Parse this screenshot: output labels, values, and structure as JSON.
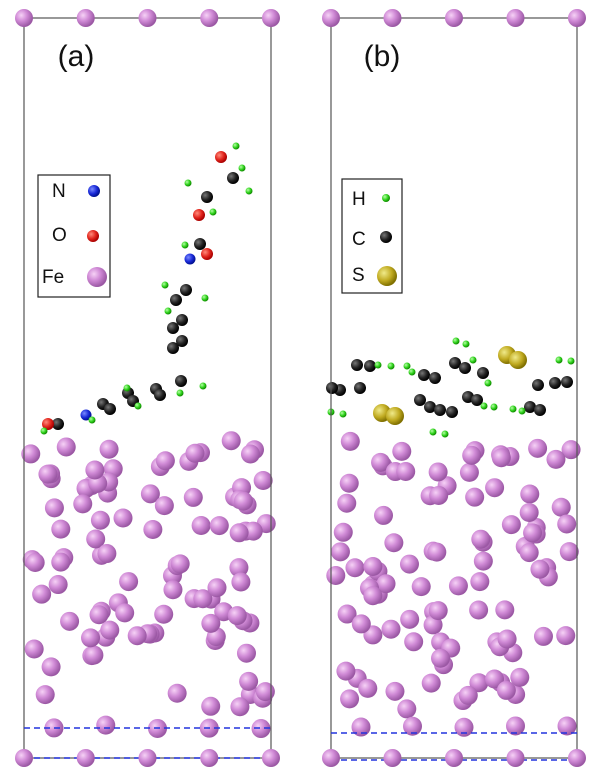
{
  "panels": [
    {
      "label": "(a)",
      "legend": [
        "N",
        "O",
        "Fe"
      ]
    },
    {
      "label": "(b)",
      "legend": [
        "H",
        "C",
        "S"
      ]
    }
  ]
}
